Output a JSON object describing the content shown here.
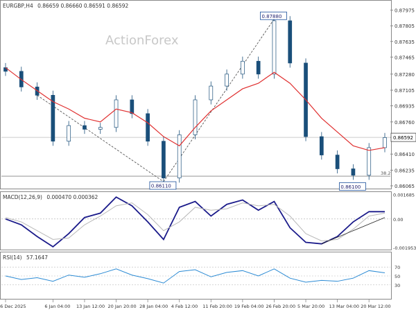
{
  "chart_data": [
    {
      "type": "line",
      "panel": "price",
      "symbol_header": "EURGBP,H4",
      "ohlc": {
        "open": "0.86659",
        "high": "0.86660",
        "low": "0.86591",
        "close": "0.86592"
      },
      "ohlc_text": "0.86659 0.86660 0.86591 0.86592",
      "watermark": "ActionForex",
      "y_ticks": [
        "0.87975",
        "0.87805",
        "0.87635",
        "0.87465",
        "0.87280",
        "0.87105",
        "0.86935",
        "0.86760",
        "0.86592",
        "0.86410",
        "0.86235",
        "0.86065"
      ],
      "ylim": [
        0.8605,
        0.8798
      ],
      "current_price_label": "0.86592",
      "annotations": [
        {
          "text": "0.87880",
          "x": "26 Feb 20:00",
          "y": 0.8788
        },
        {
          "text": "0.86110",
          "x": "4 Feb 04:00",
          "y": 0.8611
        },
        {
          "text": "0.86100",
          "x": "17 Mar 04:00",
          "y": 0.861
        }
      ],
      "fib_label": "38.2",
      "fib_level": 0.8617,
      "series": [
        {
          "style": "candlestick",
          "x": [
            "26 Dec 2025",
            "30 Dec",
            "2 Jan",
            "6 Jan 04:00",
            "9 Jan",
            "13 Jan 12:00",
            "17 Jan",
            "20 Jan 20:00",
            "24 Jan",
            "28 Jan 04:00",
            "4 Feb 04:00",
            "4 Feb 12:00",
            "8 Feb",
            "11 Feb 20:00",
            "15 Feb",
            "19 Feb 04:00",
            "23 Feb",
            "26 Feb 20:00",
            "1 Mar",
            "5 Mar 20:00",
            "9 Mar",
            "13 Mar 04:00",
            "17 Mar 04:00",
            "20 Mar 12:00",
            "21 Mar"
          ],
          "values": [
            0.8731,
            0.8714,
            0.8705,
            0.8655,
            0.8672,
            0.8668,
            0.867,
            0.87,
            0.8685,
            0.8655,
            0.8615,
            0.8662,
            0.87,
            0.8715,
            0.8728,
            0.8742,
            0.8728,
            0.8786,
            0.874,
            0.866,
            0.864,
            0.8625,
            0.8618,
            0.8648,
            0.8659
          ]
        },
        {
          "name": "",
          "style": "moving-average",
          "color": "#e03030",
          "x": [
            "26 Dec 2025",
            "30 Dec",
            "2 Jan",
            "6 Jan 04:00",
            "9 Jan",
            "13 Jan 12:00",
            "17 Jan",
            "20 Jan 20:00",
            "24 Jan",
            "28 Jan 04:00",
            "4 Feb 04:00",
            "4 Feb 12:00",
            "8 Feb",
            "11 Feb 20:00",
            "15 Feb",
            "19 Feb 04:00",
            "23 Feb",
            "26 Feb 20:00",
            "1 Mar",
            "5 Mar 20:00",
            "9 Mar",
            "13 Mar 04:00",
            "17 Mar 04:00",
            "20 Mar 12:00",
            "21 Mar"
          ],
          "values": [
            0.8735,
            0.8722,
            0.871,
            0.8698,
            0.869,
            0.868,
            0.8676,
            0.869,
            0.8686,
            0.8675,
            0.866,
            0.865,
            0.867,
            0.8688,
            0.87,
            0.8712,
            0.8718,
            0.873,
            0.8718,
            0.87,
            0.868,
            0.8665,
            0.865,
            0.8645,
            0.8648
          ]
        }
      ]
    },
    {
      "type": "line",
      "panel": "macd",
      "header_label": "MACD(12,26,9)",
      "header_values": "0.000470 0.000362",
      "y_ticks": [
        "0.001685",
        "0.00",
        "-0.001953"
      ],
      "ylim": [
        -0.002,
        0.0017
      ],
      "series": [
        {
          "style": "histogram-line",
          "color": "#1a1a8a",
          "x": [
            "26 Dec 2025",
            "30 Dec",
            "2 Jan",
            "6 Jan 04:00",
            "9 Jan",
            "13 Jan 12:00",
            "17 Jan",
            "20 Jan 20:00",
            "24 Jan",
            "28 Jan 04:00",
            "4 Feb 04:00",
            "4 Feb 12:00",
            "8 Feb",
            "11 Feb 20:00",
            "15 Feb",
            "19 Feb 04:00",
            "23 Feb",
            "26 Feb 20:00",
            "1 Mar",
            "5 Mar 20:00",
            "9 Mar",
            "13 Mar 04:00",
            "17 Mar 04:00",
            "20 Mar 12:00",
            "21 Mar"
          ],
          "values": [
            0.0,
            -0.0004,
            -0.0012,
            -0.0019,
            -0.001,
            0.0001,
            0.0004,
            0.0015,
            0.0009,
            -0.0002,
            -0.0014,
            0.0008,
            0.0012,
            0.0002,
            0.001,
            0.0013,
            0.0006,
            0.0012,
            -0.0006,
            -0.0016,
            -0.0017,
            -0.0012,
            -0.0002,
            0.0005,
            0.0005
          ]
        },
        {
          "style": "signal-line",
          "color": "#b8b8b8",
          "x": [
            "26 Dec 2025",
            "30 Dec",
            "2 Jan",
            "6 Jan 04:00",
            "9 Jan",
            "13 Jan 12:00",
            "17 Jan",
            "20 Jan 20:00",
            "24 Jan",
            "28 Jan 04:00",
            "4 Feb 04:00",
            "4 Feb 12:00",
            "8 Feb",
            "11 Feb 20:00",
            "15 Feb",
            "19 Feb 04:00",
            "23 Feb",
            "26 Feb 20:00",
            "1 Mar",
            "5 Mar 20:00",
            "9 Mar",
            "13 Mar 04:00",
            "17 Mar 04:00",
            "20 Mar 12:00",
            "21 Mar"
          ],
          "values": [
            0.0001,
            -0.0002,
            -0.0008,
            -0.0014,
            -0.0013,
            -0.0004,
            0.0002,
            0.0009,
            0.0011,
            0.0003,
            -0.0008,
            -0.0002,
            0.0008,
            0.0006,
            0.0007,
            0.0011,
            0.0009,
            0.001,
            0.0002,
            -0.001,
            -0.0015,
            -0.0014,
            -0.0007,
            0.0002,
            0.0004
          ]
        }
      ]
    },
    {
      "type": "line",
      "panel": "rsi",
      "header_label": "RSI(14)",
      "header_value": "57.1647",
      "y_ticks": [
        "70",
        "50",
        "30"
      ],
      "ylim": [
        0,
        100
      ],
      "series": [
        {
          "style": "line",
          "color": "#2a8ad4",
          "x": [
            "26 Dec 2025",
            "30 Dec",
            "2 Jan",
            "6 Jan 04:00",
            "9 Jan",
            "13 Jan 12:00",
            "17 Jan",
            "20 Jan 20:00",
            "24 Jan",
            "28 Jan 04:00",
            "4 Feb 04:00",
            "4 Feb 12:00",
            "8 Feb",
            "11 Feb 20:00",
            "15 Feb",
            "19 Feb 04:00",
            "23 Feb",
            "26 Feb 20:00",
            "1 Mar",
            "5 Mar 20:00",
            "9 Mar",
            "13 Mar 04:00",
            "17 Mar 04:00",
            "20 Mar 12:00",
            "21 Mar"
          ],
          "values": [
            50,
            42,
            46,
            38,
            52,
            47,
            55,
            66,
            52,
            44,
            34,
            60,
            64,
            48,
            58,
            62,
            50,
            66,
            45,
            36,
            40,
            38,
            45,
            62,
            57
          ]
        }
      ]
    }
  ],
  "x_tick_labels": [
    "26 Dec 2025",
    "6 Jan 04:00",
    "13 Jan 12:00",
    "20 Jan 20:00",
    "28 Jan 04:00",
    "4 Feb 12:00",
    "11 Feb 20:00",
    "19 Feb 04:00",
    "26 Feb 20:00",
    "5 Mar 20:00",
    "13 Mar 04:00",
    "20 Mar 12:00"
  ],
  "colors": {
    "candle": "#1a4f7a",
    "ma": "#e03030",
    "macd": "#1a1a8a",
    "signal": "#b8b8b8",
    "rsi": "#2a8ad4",
    "grid": "#d0d0d0",
    "axis_text": "#333333",
    "watermark": "#c8c8c8"
  }
}
